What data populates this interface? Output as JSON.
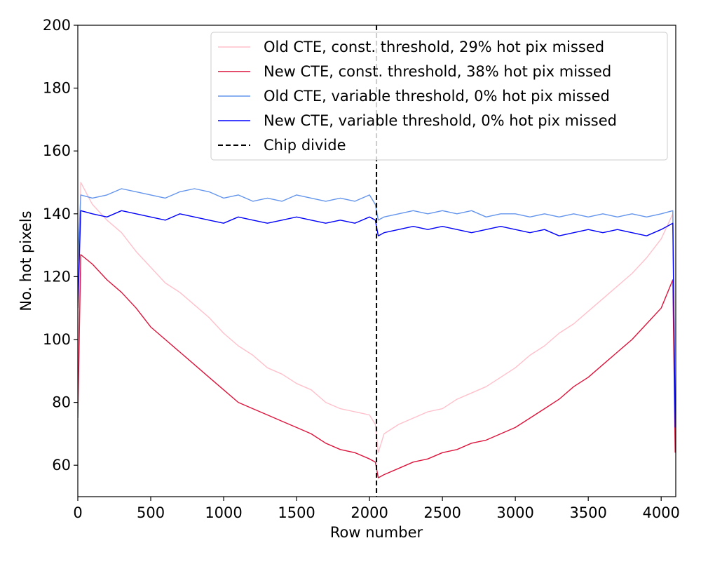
{
  "chart_data": {
    "type": "line",
    "title": "",
    "xlabel": "Row number",
    "ylabel": "No. hot pixels",
    "xlim": [
      0,
      4100
    ],
    "ylim": [
      50,
      200
    ],
    "x_ticks": [
      0,
      500,
      1000,
      1500,
      2000,
      2500,
      3000,
      3500,
      4000
    ],
    "y_ticks": [
      60,
      80,
      100,
      120,
      140,
      160,
      180,
      200
    ],
    "x_tick_labels": [
      "0",
      "500",
      "1000",
      "1500",
      "2000",
      "2500",
      "3000",
      "3500",
      "4000"
    ],
    "y_tick_labels": [
      "60",
      "80",
      "100",
      "120",
      "140",
      "160",
      "180",
      "200"
    ],
    "grid": false,
    "legend_position": "top-right",
    "x_step": 100,
    "series": [
      {
        "name": "Old CTE, const. threshold, 29% hot pix missed",
        "color": "#ffc0cb",
        "x": [
          0,
          20,
          100,
          200,
          300,
          400,
          500,
          600,
          700,
          800,
          900,
          1000,
          1100,
          1200,
          1300,
          1400,
          1500,
          1600,
          1700,
          1800,
          1900,
          2000,
          2040,
          2060,
          2100,
          2200,
          2300,
          2400,
          2500,
          2600,
          2700,
          2800,
          2900,
          3000,
          3100,
          3200,
          3300,
          3400,
          3500,
          3600,
          3700,
          3800,
          3900,
          4000,
          4080,
          4096
        ],
        "y": [
          90,
          150,
          143,
          138,
          134,
          128,
          123,
          118,
          115,
          111,
          107,
          102,
          98,
          95,
          91,
          89,
          86,
          84,
          80,
          78,
          77,
          76,
          73,
          64,
          70,
          73,
          75,
          77,
          78,
          81,
          83,
          85,
          88,
          91,
          95,
          98,
          102,
          105,
          109,
          113,
          117,
          121,
          126,
          132,
          140,
          65
        ]
      },
      {
        "name": "New CTE, const. threshold, 38% hot pix missed",
        "color": "#dc143c",
        "x": [
          0,
          20,
          100,
          200,
          300,
          400,
          500,
          600,
          700,
          800,
          900,
          1000,
          1100,
          1200,
          1300,
          1400,
          1500,
          1600,
          1700,
          1800,
          1900,
          2000,
          2040,
          2060,
          2100,
          2200,
          2300,
          2400,
          2500,
          2600,
          2700,
          2800,
          2900,
          3000,
          3100,
          3200,
          3300,
          3400,
          3500,
          3600,
          3700,
          3800,
          3900,
          4000,
          4080,
          4096
        ],
        "y": [
          75,
          127,
          124,
          119,
          115,
          110,
          104,
          100,
          96,
          92,
          88,
          84,
          80,
          78,
          76,
          74,
          72,
          70,
          67,
          65,
          64,
          62,
          61,
          56,
          57,
          59,
          61,
          62,
          64,
          65,
          67,
          68,
          70,
          72,
          75,
          78,
          81,
          85,
          88,
          92,
          96,
          100,
          105,
          110,
          119,
          64
        ]
      },
      {
        "name": "Old CTE, variable threshold, 0% hot pix missed",
        "color": "#6495ed",
        "x": [
          0,
          20,
          100,
          200,
          300,
          400,
          500,
          600,
          700,
          800,
          900,
          1000,
          1100,
          1200,
          1300,
          1400,
          1500,
          1600,
          1700,
          1800,
          1900,
          2000,
          2040,
          2060,
          2100,
          2200,
          2300,
          2400,
          2500,
          2600,
          2700,
          2800,
          2900,
          3000,
          3100,
          3200,
          3300,
          3400,
          3500,
          3600,
          3700,
          3800,
          3900,
          4000,
          4080,
          4096
        ],
        "y": [
          125,
          146,
          145,
          146,
          148,
          147,
          146,
          145,
          147,
          148,
          147,
          145,
          146,
          144,
          145,
          144,
          146,
          145,
          144,
          145,
          144,
          146,
          143,
          138,
          139,
          140,
          141,
          140,
          141,
          140,
          141,
          139,
          140,
          140,
          139,
          140,
          139,
          140,
          139,
          140,
          139,
          140,
          139,
          140,
          141,
          75
        ]
      },
      {
        "name": "New CTE, variable threshold, 0% hot pix missed",
        "color": "#0000ff",
        "x": [
          0,
          20,
          100,
          200,
          300,
          400,
          500,
          600,
          700,
          800,
          900,
          1000,
          1100,
          1200,
          1300,
          1400,
          1500,
          1600,
          1700,
          1800,
          1900,
          2000,
          2040,
          2060,
          2100,
          2200,
          2300,
          2400,
          2500,
          2600,
          2700,
          2800,
          2900,
          3000,
          3100,
          3200,
          3300,
          3400,
          3500,
          3600,
          3700,
          3800,
          3900,
          4000,
          4080,
          4096
        ],
        "y": [
          110,
          141,
          140,
          139,
          141,
          140,
          139,
          138,
          140,
          139,
          138,
          137,
          139,
          138,
          137,
          138,
          139,
          138,
          137,
          138,
          137,
          139,
          138,
          133,
          134,
          135,
          136,
          135,
          136,
          135,
          134,
          135,
          136,
          135,
          134,
          135,
          133,
          134,
          135,
          134,
          135,
          134,
          133,
          135,
          137,
          72
        ]
      }
    ],
    "chip_divide": {
      "name": "Chip divide",
      "x": 2048,
      "color": "#000000",
      "style": "dashed"
    }
  }
}
